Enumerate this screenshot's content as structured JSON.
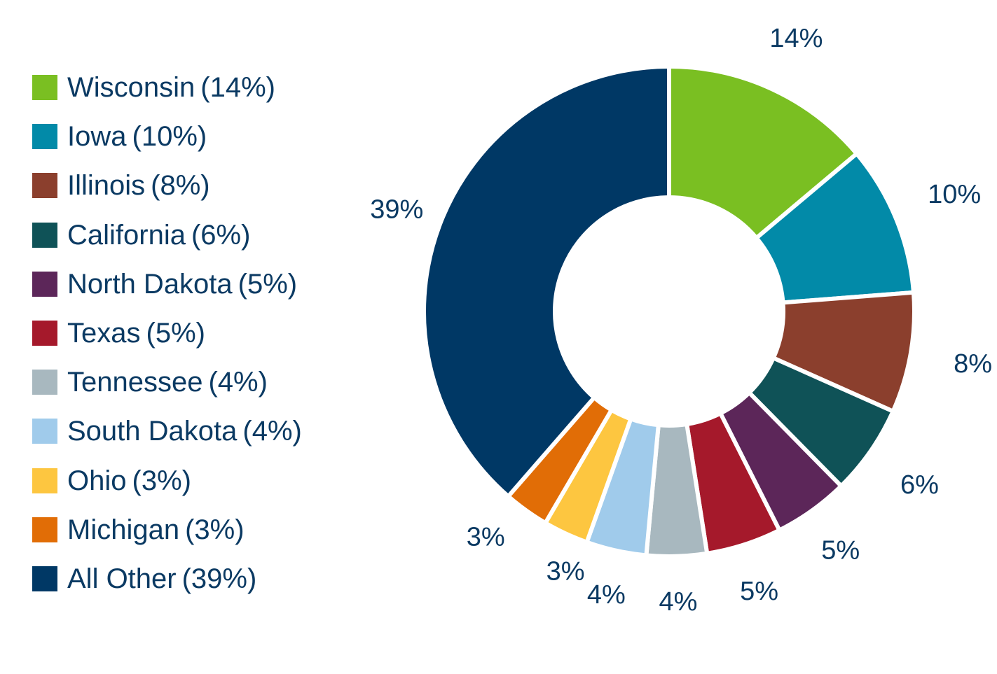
{
  "chart_data": {
    "type": "pie",
    "subtype": "donut",
    "legend_position": "left",
    "categories": [
      "Wisconsin",
      "Iowa",
      "Illinois",
      "California",
      "North Dakota",
      "Texas",
      "Tennessee",
      "South Dakota",
      "Ohio",
      "Michigan",
      "All Other"
    ],
    "values": [
      14,
      10,
      8,
      6,
      5,
      5,
      4,
      4,
      3,
      3,
      39
    ],
    "legend_pct_labels": [
      "(14%)",
      "(10%)",
      "(8%)",
      "(6%)",
      "(5%)",
      "(5%)",
      "(4%)",
      "(4%)",
      "(3%)",
      "(3%)",
      "(39%)"
    ],
    "data_labels": [
      "14%",
      "10%",
      "8%",
      "6%",
      "5%",
      "5%",
      "4%",
      "4%",
      "3%",
      "3%",
      "39%"
    ],
    "colors": [
      "#7abf22",
      "#028aa8",
      "#8b3f2d",
      "#0f5257",
      "#5c2659",
      "#a5192b",
      "#a8b8bf",
      "#a0cbeb",
      "#fdc640",
      "#e16d06",
      "#003865"
    ],
    "text_color": "#0b3a63"
  }
}
